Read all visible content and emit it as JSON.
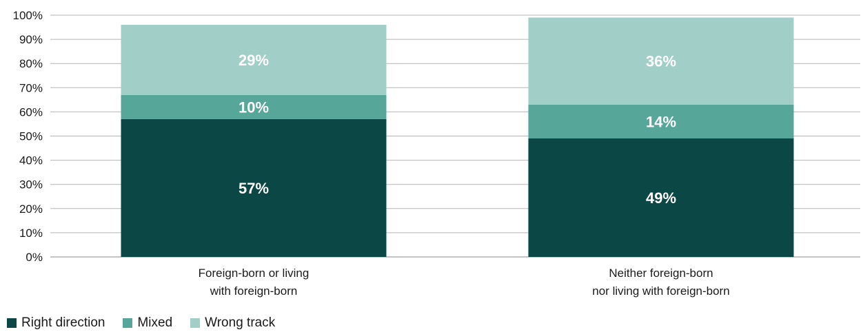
{
  "chart_data": {
    "type": "bar",
    "stacked": true,
    "categories": [
      [
        "Foreign-born or living",
        "with foreign-born"
      ],
      [
        "Neither foreign-born",
        "nor living with foreign-born"
      ]
    ],
    "series": [
      {
        "name": "Right direction",
        "values": [
          57,
          49
        ],
        "labels": [
          "57%",
          "49%"
        ],
        "color": "#0b4744"
      },
      {
        "name": "Mixed",
        "values": [
          10,
          14
        ],
        "labels": [
          "10%",
          "14%"
        ],
        "color": "#56a699"
      },
      {
        "name": "Wrong track",
        "values": [
          29,
          36
        ],
        "labels": [
          "29%",
          "36%"
        ],
        "color": "#a2cec8"
      }
    ],
    "y_ticks": [
      "0%",
      "10%",
      "20%",
      "30%",
      "40%",
      "50%",
      "60%",
      "70%",
      "80%",
      "90%",
      "100%"
    ],
    "ylim": [
      0,
      100
    ],
    "grid": true,
    "legend_position": "bottom-left"
  }
}
